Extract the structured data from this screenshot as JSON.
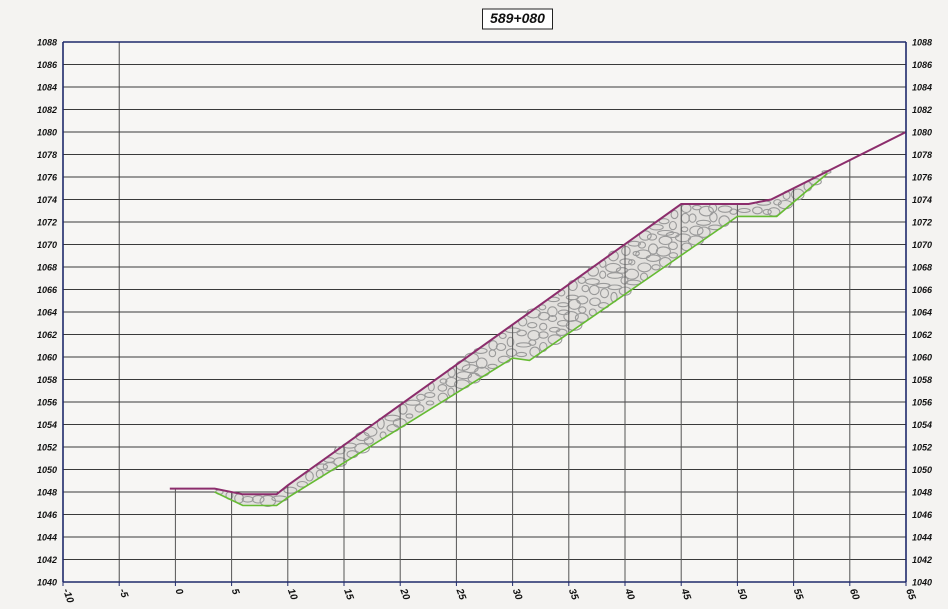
{
  "chart_data": {
    "type": "line",
    "title": "589+080",
    "xlabel": "",
    "ylabel": "",
    "xlim": [
      -10,
      65
    ],
    "ylim": [
      1040,
      1088
    ],
    "x_ticks": [
      -10,
      -5,
      0,
      5,
      10,
      15,
      20,
      25,
      30,
      35,
      40,
      45,
      50,
      55,
      60,
      65
    ],
    "y_ticks": [
      1040,
      1042,
      1044,
      1046,
      1048,
      1050,
      1052,
      1054,
      1056,
      1058,
      1060,
      1062,
      1064,
      1066,
      1068,
      1070,
      1072,
      1074,
      1076,
      1078,
      1080,
      1082,
      1084,
      1086,
      1088
    ],
    "x_tick_labels": [
      "-10",
      "-5",
      "0",
      "5",
      "10",
      "15",
      "20",
      "25",
      "30",
      "35",
      "40",
      "45",
      "50",
      "55",
      "60",
      "65"
    ],
    "y_tick_labels": [
      "1040",
      "1042",
      "1044",
      "1046",
      "1048",
      "1050",
      "1052",
      "1054",
      "1056",
      "1058",
      "1060",
      "1062",
      "1064",
      "1066",
      "1068",
      "1070",
      "1072",
      "1074",
      "1076",
      "1078",
      "1080",
      "1082",
      "1084",
      "1086",
      "1088"
    ],
    "grid": true,
    "series": [
      {
        "color": "#8c2d6c",
        "values_xy": [
          [
            -0.5,
            1048.3
          ],
          [
            3.5,
            1048.3
          ],
          [
            6,
            1047.8
          ],
          [
            9,
            1047.8
          ],
          [
            10,
            1048.6
          ],
          [
            45,
            1073.6
          ],
          [
            51,
            1073.6
          ],
          [
            53,
            1074.0
          ],
          [
            58,
            1076.5
          ],
          [
            65,
            1080.0
          ]
        ]
      },
      {
        "color": "#66bb33",
        "values_xy": [
          [
            3.5,
            1048.0
          ],
          [
            6,
            1046.8
          ],
          [
            9,
            1046.8
          ],
          [
            10,
            1047.5
          ],
          [
            30,
            1059.9
          ],
          [
            31.5,
            1059.7
          ],
          [
            50,
            1072.5
          ],
          [
            53.5,
            1072.5
          ],
          [
            58,
            1076.3
          ]
        ]
      }
    ],
    "fill_regions": [
      {
        "color": "#9a9a9a",
        "top_series_index": 0,
        "bottom_series_index": 1,
        "x_range": [
          3.5,
          58
        ]
      }
    ],
    "vertical_drops": [
      0,
      5,
      10,
      15,
      20,
      25,
      30,
      35,
      40,
      45,
      50,
      55,
      60
    ]
  }
}
